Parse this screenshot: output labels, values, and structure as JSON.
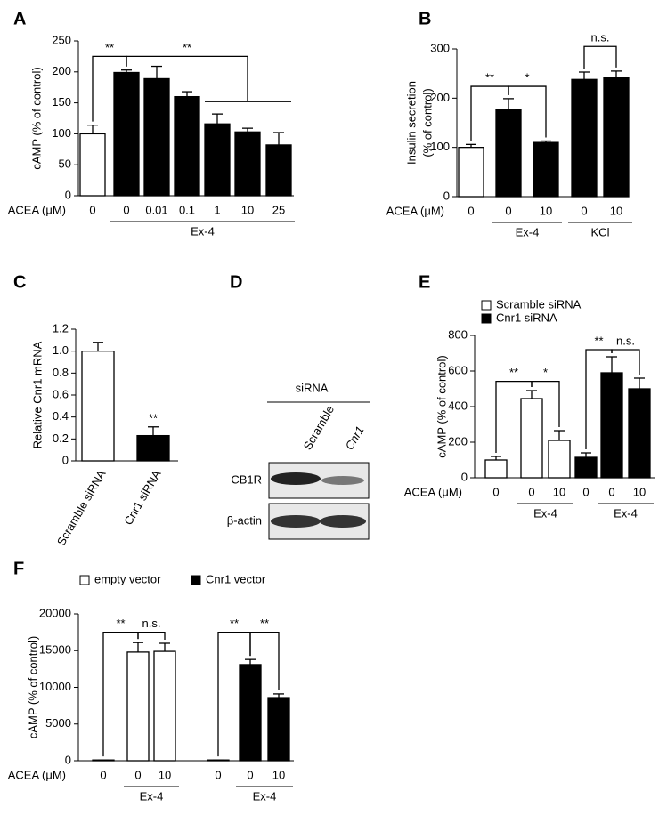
{
  "chart_data": [
    {
      "panel": "A",
      "type": "bar",
      "ylabel": [
        "cAMP (% of control)"
      ],
      "xlabel": "ACEA (μM)",
      "categories": [
        "0",
        "0",
        "0.01",
        "0.1",
        "1",
        "10",
        "25"
      ],
      "values": [
        100,
        199,
        189,
        160,
        116,
        103,
        82
      ],
      "errors": [
        14,
        4,
        20,
        8,
        16,
        6,
        20
      ],
      "bar_colors": [
        "#ffffff",
        "#000000",
        "#000000",
        "#000000",
        "#000000",
        "#000000",
        "#000000"
      ],
      "groups": [
        null,
        "Ex-4",
        "Ex-4",
        "Ex-4",
        "Ex-4",
        "Ex-4",
        "Ex-4"
      ],
      "annotations": [
        "**",
        "**"
      ],
      "ylim": [
        0,
        250
      ],
      "yticks": [
        0,
        50,
        100,
        150,
        200,
        250
      ]
    },
    {
      "panel": "B",
      "type": "bar",
      "ylabel": [
        "Insulin secretion",
        "(% of control)"
      ],
      "xlabel": "ACEA (μM)",
      "categories": [
        "0",
        "0",
        "10",
        "0",
        "10"
      ],
      "values": [
        100,
        177,
        110,
        238,
        242
      ],
      "errors": [
        6,
        22,
        3,
        15,
        13
      ],
      "bar_colors": [
        "#ffffff",
        "#000000",
        "#000000",
        "#000000",
        "#000000"
      ],
      "groups": [
        null,
        "Ex-4",
        "Ex-4",
        "KCl",
        "KCl"
      ],
      "annotations": [
        "**",
        "*",
        "n.s."
      ],
      "ylim": [
        0,
        300
      ],
      "yticks": [
        0,
        100,
        200,
        300
      ]
    },
    {
      "panel": "C",
      "type": "bar",
      "ylabel": [
        "Relative Cnr1 mRNA"
      ],
      "categories": [
        "Scramble siRNA",
        "Cnr1 siRNA"
      ],
      "values": [
        1.0,
        0.23
      ],
      "errors": [
        0.08,
        0.08
      ],
      "bar_colors": [
        "#ffffff",
        "#000000"
      ],
      "annotations": [
        "**"
      ],
      "ylim": [
        0,
        1.2
      ],
      "yticks": [
        0,
        0.2,
        0.4,
        0.6,
        0.8,
        {
          "value": 1,
          "label": "1.0"
        },
        1.2
      ]
    },
    {
      "panel": "E",
      "type": "bar",
      "ylabel": [
        "cAMP (% of control)"
      ],
      "xlabel": "ACEA (μM)",
      "categories": [
        "0",
        "0",
        "10",
        "0",
        "0",
        "10"
      ],
      "series": [
        {
          "name": "Scramble siRNA",
          "color": "#ffffff",
          "values": [
            100,
            445,
            210,
            null,
            null,
            null
          ],
          "errors": [
            20,
            45,
            55,
            null,
            null,
            null
          ]
        },
        {
          "name": "Cnr1 siRNA",
          "color": "#000000",
          "values": [
            null,
            null,
            null,
            115,
            590,
            500
          ],
          "errors": [
            null,
            null,
            null,
            25,
            90,
            60
          ]
        }
      ],
      "groups": [
        null,
        "Ex-4",
        "Ex-4",
        null,
        "Ex-4",
        "Ex-4"
      ],
      "annotations": [
        "**",
        "*",
        "**",
        "n.s."
      ],
      "ylim": [
        0,
        800
      ],
      "yticks": [
        0,
        200,
        400,
        600,
        800
      ]
    },
    {
      "panel": "F",
      "type": "bar",
      "ylabel": [
        "cAMP (% of control)"
      ],
      "xlabel": "ACEA (μM)",
      "categories": [
        "0",
        "0",
        "10",
        "0",
        "0",
        "10"
      ],
      "series": [
        {
          "name": "empty vector",
          "color": "#ffffff",
          "values": [
            100,
            14800,
            14900,
            null,
            null,
            null
          ],
          "errors": [
            0,
            1300,
            1100,
            null,
            null,
            null
          ]
        },
        {
          "name": "Cnr1 vector",
          "color": "#000000",
          "values": [
            null,
            null,
            null,
            100,
            13100,
            8600
          ],
          "errors": [
            null,
            null,
            null,
            0,
            700,
            500
          ]
        }
      ],
      "groups": [
        null,
        "Ex-4",
        "Ex-4",
        null,
        "Ex-4",
        "Ex-4"
      ],
      "annotations": [
        "**",
        "n.s.",
        "**",
        "**"
      ],
      "ylim": [
        0,
        20000
      ],
      "yticks": [
        0,
        5000,
        10000,
        15000,
        20000
      ]
    }
  ],
  "blot": {
    "panel": "D",
    "title": "siRNA",
    "lanes": [
      "Scramble",
      "Cnr1"
    ],
    "rows": [
      "CB1R",
      "β-actin"
    ]
  }
}
